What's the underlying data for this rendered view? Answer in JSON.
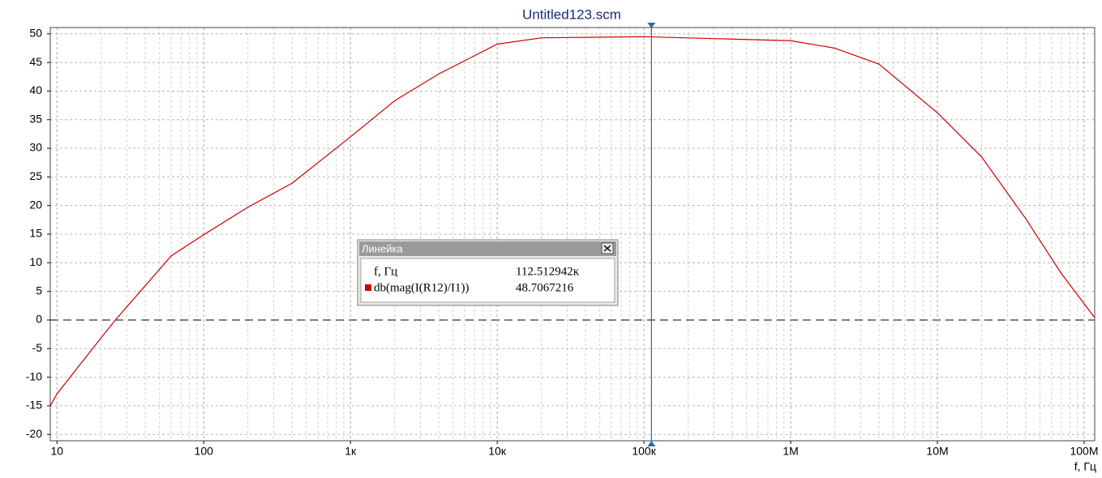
{
  "chart_data": {
    "type": "line",
    "title": "Untitled123.scm",
    "x_label": "f, Гц",
    "log_x": true,
    "grid": true,
    "x": [
      9,
      10,
      20,
      25,
      40,
      60,
      100,
      200,
      400,
      1000,
      2000,
      4000,
      10000,
      20000,
      100000,
      1000000,
      2000000,
      4000000,
      10000000,
      20000000,
      40000000,
      70000000,
      118000000
    ],
    "series": [
      {
        "name": "db(mag(I(R12)/I1))",
        "color": "#cc0000",
        "values": [
          -15,
          -12.9,
          -3.1,
          0,
          6,
          11.2,
          14.9,
          19.7,
          23.9,
          32,
          38.3,
          43,
          48.2,
          49.3,
          49.5,
          48.8,
          47.5,
          44.7,
          36.2,
          28.5,
          17.7,
          8.1,
          0.4
        ]
      }
    ],
    "xlim": [
      9,
      118000000
    ],
    "ylim": [
      -21.1,
      51.1
    ],
    "xticks": [
      {
        "value": 10,
        "label": "10"
      },
      {
        "value": 100,
        "label": "100"
      },
      {
        "value": 1000,
        "label": "1к"
      },
      {
        "value": 10000,
        "label": "10к"
      },
      {
        "value": 100000,
        "label": "100к"
      },
      {
        "value": 1000000,
        "label": "1M"
      },
      {
        "value": 10000000,
        "label": "10M"
      },
      {
        "value": 100000000,
        "label": "100M"
      }
    ],
    "yticks": [
      -20,
      -15,
      -10,
      -5,
      0,
      5,
      10,
      15,
      20,
      25,
      30,
      35,
      40,
      45,
      50
    ],
    "cursor": {
      "title": "Линейка",
      "x": 112512.942,
      "x_label": "112.512942к",
      "y": 48.7067216,
      "color": "#2a6ea6"
    }
  }
}
